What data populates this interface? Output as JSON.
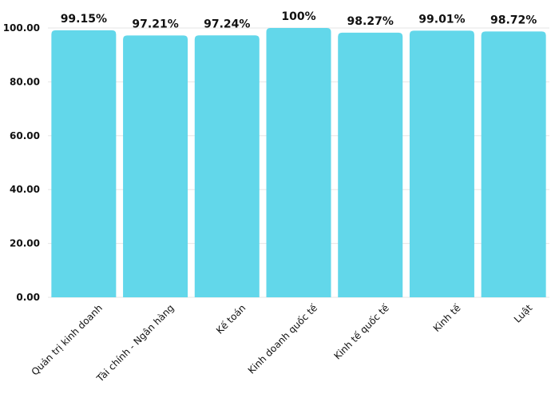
{
  "chart_data": {
    "type": "bar",
    "categories": [
      "Quản trị kinh doanh",
      "Tài chính - Ngân hàng",
      "Kế toán",
      "Kinh doanh quốc tế",
      "Kinh tế quốc tế",
      "Kinh tế",
      "Luật"
    ],
    "values": [
      99.15,
      97.21,
      97.24,
      100,
      98.27,
      99.01,
      98.72
    ],
    "data_labels": [
      "99.15%",
      "97.21%",
      "97.24%",
      "100%",
      "98.27%",
      "99.01%",
      "98.72%"
    ],
    "yticks": [
      "0.00",
      "20.00",
      "40.00",
      "60.00",
      "80.00",
      "100.00"
    ],
    "ylim": [
      0,
      100
    ],
    "grid": true,
    "legend": "none",
    "colors": {
      "bar": "#62D7EA",
      "text": "#111111",
      "grid": "#e6e6e6"
    }
  }
}
